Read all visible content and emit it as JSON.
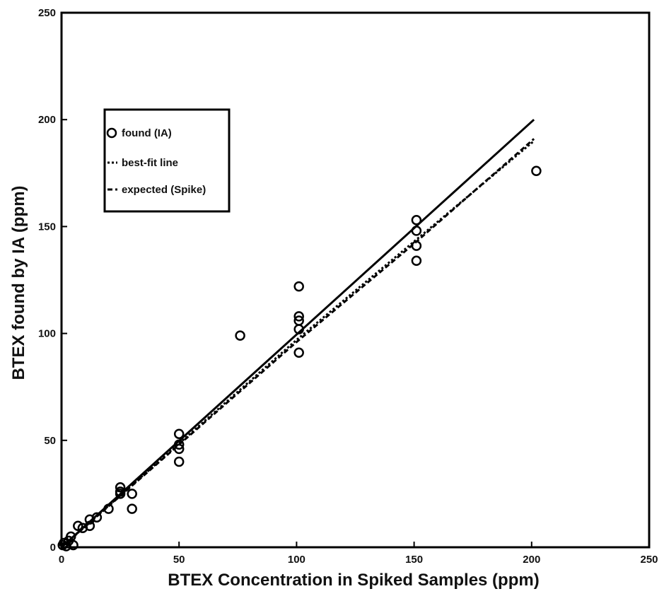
{
  "chart_data": {
    "type": "scatter",
    "xlabel": "BTEX Concentration in Spiked Samples (ppm)",
    "ylabel": "BTEX found by IA (ppm)",
    "xlim": [
      0,
      250
    ],
    "ylim": [
      0,
      250
    ],
    "xticks": [
      "0",
      "50",
      "100",
      "150",
      "200",
      "250"
    ],
    "yticks": [
      "0",
      "50",
      "100",
      "150",
      "200",
      "250"
    ],
    "grid": false,
    "legend_position": "upper-left",
    "legend": [
      {
        "label": "found (IA)",
        "style": "open-circle"
      },
      {
        "label": "best-fit line",
        "style": "dotted"
      },
      {
        "label": "expected (Spike)",
        "style": "dashed"
      }
    ],
    "series": [
      {
        "name": "found (IA)",
        "kind": "points",
        "points": [
          {
            "x": 0.5,
            "y": 1
          },
          {
            "x": 1,
            "y": 2
          },
          {
            "x": 2,
            "y": 0.5
          },
          {
            "x": 3,
            "y": 3
          },
          {
            "x": 4,
            "y": 5
          },
          {
            "x": 5,
            "y": 1
          },
          {
            "x": 7,
            "y": 10
          },
          {
            "x": 9,
            "y": 9
          },
          {
            "x": 12,
            "y": 10
          },
          {
            "x": 12,
            "y": 13
          },
          {
            "x": 15,
            "y": 14
          },
          {
            "x": 20,
            "y": 18
          },
          {
            "x": 25,
            "y": 25
          },
          {
            "x": 25,
            "y": 26
          },
          {
            "x": 25,
            "y": 28
          },
          {
            "x": 30,
            "y": 18
          },
          {
            "x": 30,
            "y": 25
          },
          {
            "x": 50,
            "y": 40
          },
          {
            "x": 50,
            "y": 46
          },
          {
            "x": 50,
            "y": 48
          },
          {
            "x": 50,
            "y": 53
          },
          {
            "x": 76,
            "y": 99
          },
          {
            "x": 101,
            "y": 91
          },
          {
            "x": 101,
            "y": 102
          },
          {
            "x": 101,
            "y": 106
          },
          {
            "x": 101,
            "y": 108
          },
          {
            "x": 101,
            "y": 122
          },
          {
            "x": 151,
            "y": 134
          },
          {
            "x": 151,
            "y": 141
          },
          {
            "x": 151,
            "y": 148
          },
          {
            "x": 151,
            "y": 153
          },
          {
            "x": 202,
            "y": 176
          }
        ]
      },
      {
        "name": "best-fit line",
        "kind": "line",
        "style": "dotted",
        "points": [
          {
            "x": 0,
            "y": 0
          },
          {
            "x": 100,
            "y": 97
          },
          {
            "x": 150,
            "y": 143
          },
          {
            "x": 201,
            "y": 190
          }
        ]
      },
      {
        "name": "expected (Spike)",
        "kind": "line",
        "style": "dashed",
        "points": [
          {
            "x": 0,
            "y": 0
          },
          {
            "x": 100,
            "y": 96
          },
          {
            "x": 150,
            "y": 142
          },
          {
            "x": 201,
            "y": 191
          }
        ]
      },
      {
        "name": "",
        "kind": "line",
        "style": "solid",
        "points": [
          {
            "x": 0,
            "y": 0
          },
          {
            "x": 201,
            "y": 200
          }
        ]
      }
    ]
  }
}
